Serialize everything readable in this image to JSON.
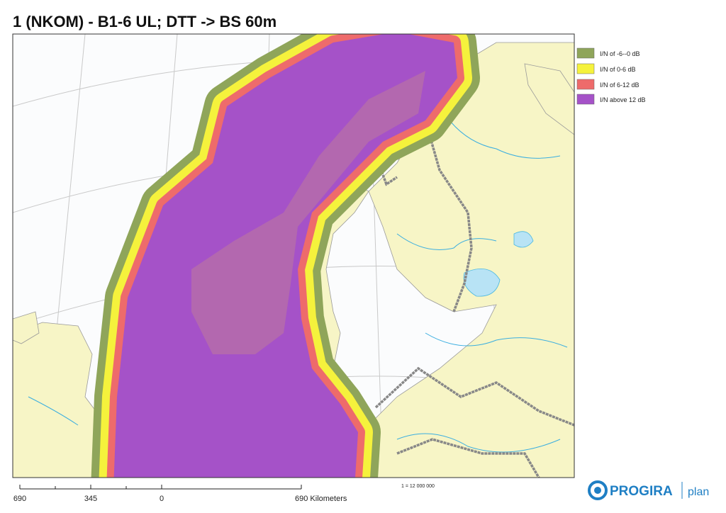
{
  "header": {
    "title": "1 (NKOM) - B1-6 UL; DTT -> BS 60m"
  },
  "legend": {
    "items": [
      "I/N of -6--0 dB",
      "I/N  of 0-6 dB",
      "I/N of  6-12 dB",
      "I/N above 12 dB"
    ]
  },
  "scale_bar": {
    "labels": [
      "690",
      "345",
      "0",
      "690 Kilometers"
    ],
    "ratio": "1 = 12 000 000"
  },
  "logo": {
    "name": "PROGIRA",
    "suffix": "plan"
  }
}
